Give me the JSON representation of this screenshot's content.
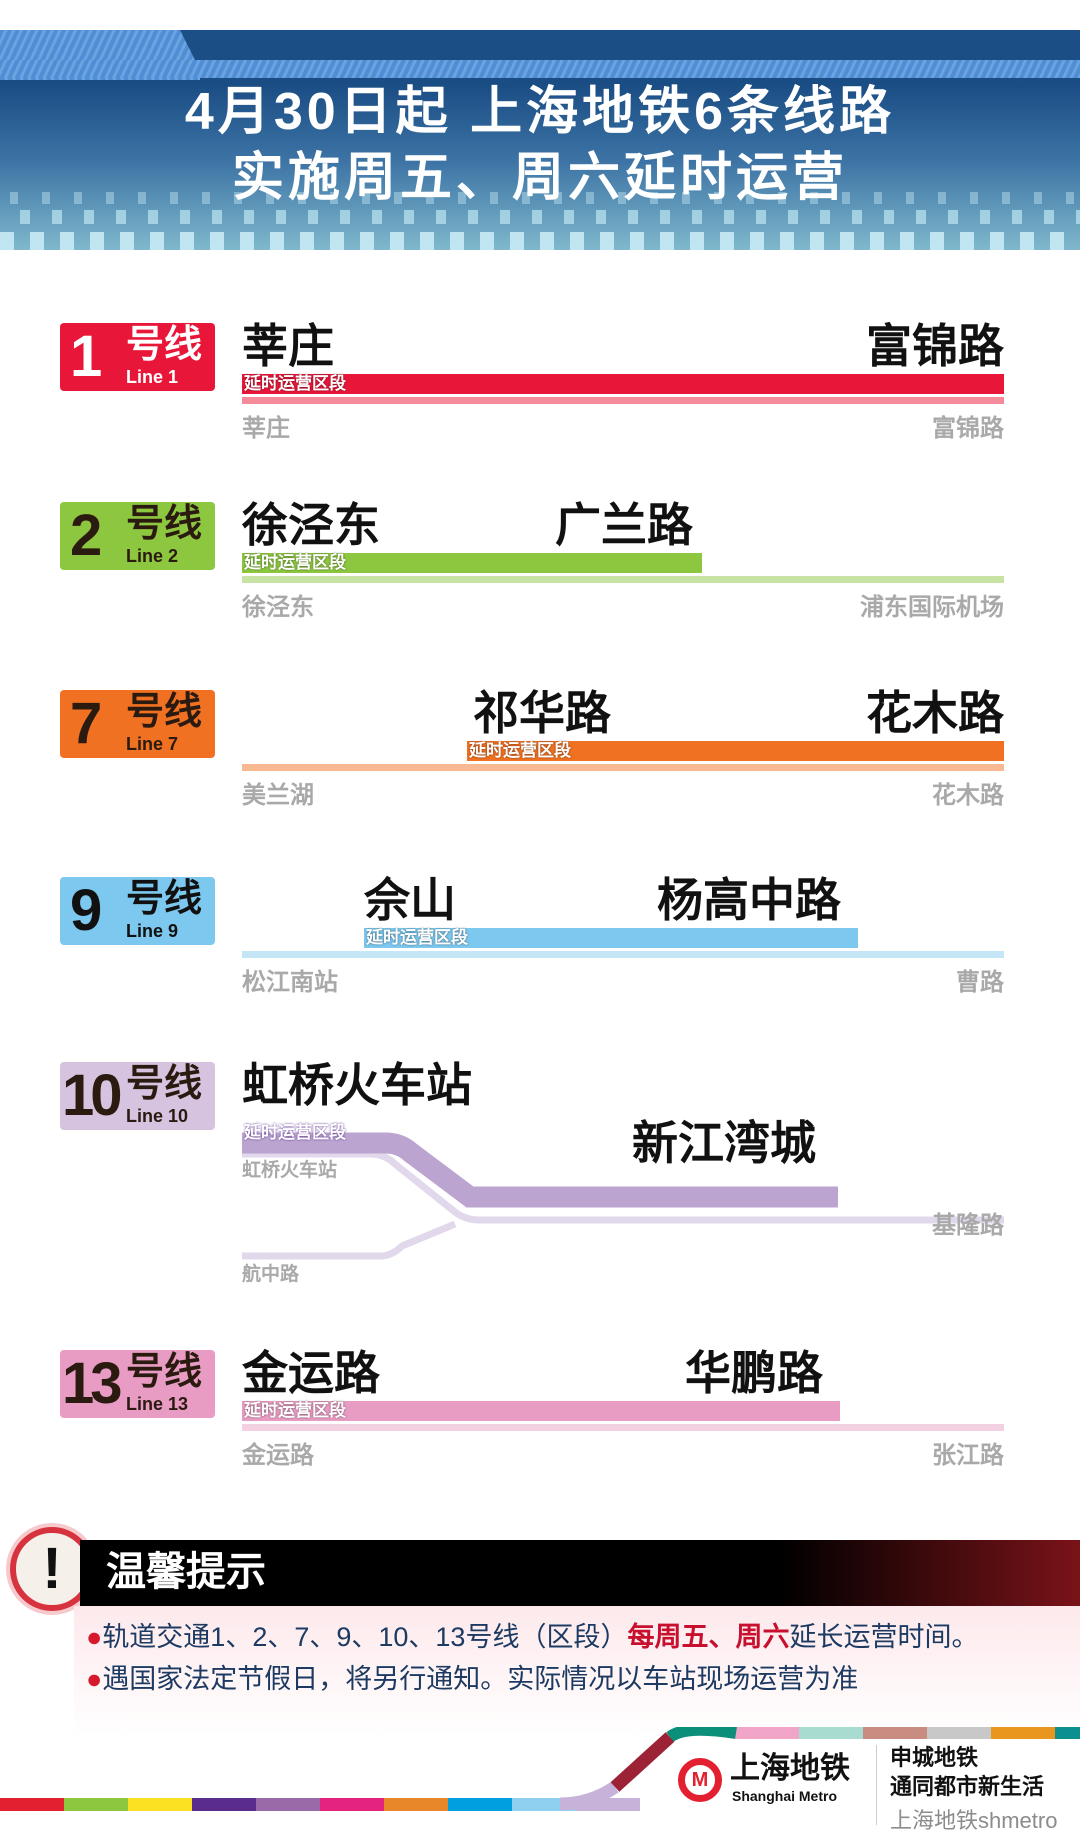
{
  "header": {
    "title_line1": "4月30日起  上海地铁6条线路",
    "title_line2": "实施周五、周六延时运营"
  },
  "extended_label": "延时运营区段",
  "lines": [
    {
      "num": "1",
      "hx": "号线",
      "en": "Line 1",
      "color": "#e8173a",
      "light": "#f48a9a",
      "num_color": "#ffffff",
      "from": "莘庄",
      "to": "富锦路",
      "term_start": "莘庄",
      "term_end": "富锦路"
    },
    {
      "num": "2",
      "hx": "号线",
      "en": "Line 2",
      "color": "#8dc63f",
      "light": "#c8e4a4",
      "num_color": "#2a1a10",
      "from": "徐泾东",
      "to": "广兰路",
      "term_start": "徐泾东",
      "term_end": "浦东国际机场"
    },
    {
      "num": "7",
      "hx": "号线",
      "en": "Line 7",
      "color": "#f07122",
      "light": "#f8b891",
      "num_color": "#2a1a10",
      "from": "祁华路",
      "to": "花木路",
      "term_start": "美兰湖",
      "term_end": "花木路"
    },
    {
      "num": "9",
      "hx": "号线",
      "en": "Line 9",
      "color": "#7dc8ee",
      "light": "#c5e6f7",
      "num_color": "#111111",
      "from": "佘山",
      "to": "杨高中路",
      "term_start": "松江南站",
      "term_end": "曹路"
    },
    {
      "num": "10",
      "hx": "号线",
      "en": "Line 10",
      "color": "#bba5d0",
      "light": "#e2d8ec",
      "num_color": "#2a1a10",
      "from": "虹桥火车站",
      "to": "新江湾城",
      "term_start": "虹桥火车站",
      "term_branch": "航中路",
      "term_end": "基隆路"
    },
    {
      "num": "13",
      "hx": "号线",
      "en": "Line 13",
      "color": "#e89cc3",
      "light": "#f3d0e2",
      "num_color": "#2a1a10",
      "from": "金运路",
      "to": "华鹏路",
      "term_start": "金运路",
      "term_end": "张江路"
    }
  ],
  "notice": {
    "title": "温馨提示",
    "bullet": "●",
    "line1_a": "轨道交通1、2、7、9、10、13号线（区段）",
    "line1_hl": "每周五、周六",
    "line1_b": "延长运营时间。",
    "line2": "遇国家法定节假日，将另行通知。实际情况以车站现场运营为准"
  },
  "footer": {
    "logo_cn": "上海地铁",
    "logo_en": "Shanghai Metro",
    "slogan1": "申城地铁",
    "slogan2": "通同都市新生活",
    "watermark": "上海地铁shmetro",
    "strip_colors": [
      "#e3202f",
      "#8dc63f",
      "#fbe122",
      "#5a2d8c",
      "#9a6aa8",
      "#e4237e",
      "#e8872a",
      "#009fde",
      "#8fd0f0",
      "#c7b3d9"
    ],
    "strip_colors_top": [
      "#0c8f7a",
      "#f1a6c8",
      "#a8dcd0",
      "#c98c80",
      "#c8c8c8",
      "#e8961e",
      "#0c8f8f"
    ]
  }
}
